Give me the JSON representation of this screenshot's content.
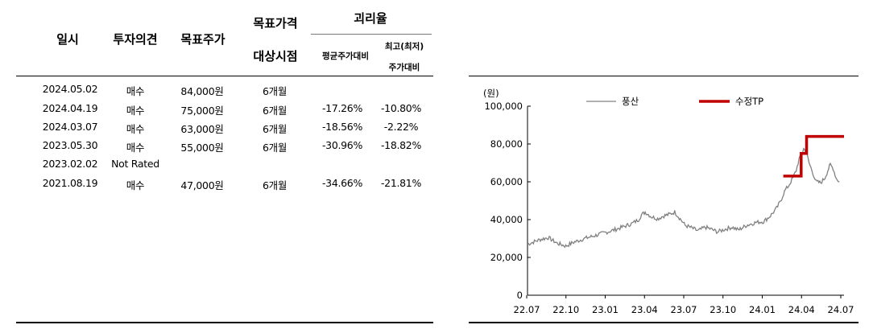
{
  "table": {
    "headers": {
      "date": "일시",
      "opinion": "투자의견",
      "target": "목표주가",
      "period_top": "목표가격",
      "period_bottom": "대상시점",
      "gap": "괴리율",
      "gap_avg": "평균주가대비",
      "gap_max_top": "최고(최저)",
      "gap_max_bottom": "주가대비"
    },
    "rows": [
      {
        "date": "2024.05.02",
        "opinion": "매수",
        "target": "84,000원",
        "period": "6개월",
        "avg": "",
        "max": ""
      },
      {
        "date": "2024.04.19",
        "opinion": "매수",
        "target": "75,000원",
        "period": "6개월",
        "avg": "-17.26%",
        "max": "-10.80%"
      },
      {
        "date": "2024.03.07",
        "opinion": "매수",
        "target": "63,000원",
        "period": "6개월",
        "avg": "-18.56%",
        "max": "-2.22%"
      },
      {
        "date": "2023.05.30",
        "opinion": "매수",
        "target": "55,000원",
        "period": "6개월",
        "avg": "-30.96%",
        "max": "-18.82%"
      },
      {
        "date": "2023.02.02",
        "opinion": "Not Rated",
        "target": "",
        "period": "",
        "avg": "",
        "max": ""
      },
      {
        "date": "2021.08.19",
        "opinion": "매수",
        "target": "47,000원",
        "period": "6개월",
        "avg": "-34.66%",
        "max": "-21.81%"
      }
    ]
  },
  "chart_data": {
    "type": "line",
    "unit_label": "(원)",
    "x_ticks": [
      "22.07",
      "22.10",
      "23.01",
      "23.04",
      "23.07",
      "23.10",
      "24.01",
      "24.04",
      "24.07"
    ],
    "y_ticks": [
      "0",
      "20,000",
      "40,000",
      "60,000",
      "80,000",
      "100,000"
    ],
    "ylim": [
      0,
      100000
    ],
    "xlim": [
      "2022-07-01",
      "2024-07-31"
    ],
    "legend": {
      "position": "top"
    },
    "series": [
      {
        "name": "풍산",
        "color": "#808080",
        "points": [
          [
            "2022-07-01",
            27000
          ],
          [
            "2022-08-01",
            29500
          ],
          [
            "2022-08-20",
            30500
          ],
          [
            "2022-09-10",
            27500
          ],
          [
            "2022-10-01",
            26000
          ],
          [
            "2022-10-20",
            28000
          ],
          [
            "2022-11-15",
            30000
          ],
          [
            "2022-12-10",
            31500
          ],
          [
            "2023-01-01",
            33000
          ],
          [
            "2023-01-25",
            34500
          ],
          [
            "2023-02-20",
            36500
          ],
          [
            "2023-03-10",
            38000
          ],
          [
            "2023-03-25",
            40000
          ],
          [
            "2023-04-01",
            42500
          ],
          [
            "2023-04-10",
            44000
          ],
          [
            "2023-04-25",
            41500
          ],
          [
            "2023-05-10",
            40500
          ],
          [
            "2023-05-25",
            42000
          ],
          [
            "2023-06-10",
            43000
          ],
          [
            "2023-06-20",
            44000
          ],
          [
            "2023-07-01",
            41000
          ],
          [
            "2023-07-15",
            37000
          ],
          [
            "2023-08-01",
            35500
          ],
          [
            "2023-08-15",
            34000
          ],
          [
            "2023-09-01",
            36000
          ],
          [
            "2023-09-15",
            35000
          ],
          [
            "2023-10-01",
            33500
          ],
          [
            "2023-10-20",
            35000
          ],
          [
            "2023-11-05",
            36000
          ],
          [
            "2023-11-20",
            34500
          ],
          [
            "2023-12-10",
            37000
          ],
          [
            "2024-01-01",
            38500
          ],
          [
            "2024-01-20",
            39000
          ],
          [
            "2024-02-05",
            42000
          ],
          [
            "2024-02-20",
            46000
          ],
          [
            "2024-03-01",
            50000
          ],
          [
            "2024-03-10",
            55000
          ],
          [
            "2024-03-20",
            58000
          ],
          [
            "2024-03-30",
            62000
          ],
          [
            "2024-04-07",
            66000
          ],
          [
            "2024-04-14",
            72000
          ],
          [
            "2024-04-20",
            74000
          ],
          [
            "2024-04-25",
            77500
          ],
          [
            "2024-05-01",
            76000
          ],
          [
            "2024-05-08",
            70000
          ],
          [
            "2024-05-15",
            66000
          ],
          [
            "2024-05-25",
            60000
          ],
          [
            "2024-06-05",
            59500
          ],
          [
            "2024-06-15",
            62000
          ],
          [
            "2024-06-22",
            66000
          ],
          [
            "2024-06-28",
            69000
          ],
          [
            "2024-07-05",
            67000
          ],
          [
            "2024-07-12",
            62000
          ],
          [
            "2024-07-20",
            60000
          ]
        ]
      },
      {
        "name": "수정TP",
        "color": "#c00000",
        "step": true,
        "points": [
          [
            "2024-03-07",
            63000
          ],
          [
            "2024-04-19",
            63000
          ],
          [
            "2024-04-19",
            75000
          ],
          [
            "2024-05-02",
            75000
          ],
          [
            "2024-05-02",
            84000
          ],
          [
            "2024-07-31",
            84000
          ]
        ]
      }
    ]
  }
}
